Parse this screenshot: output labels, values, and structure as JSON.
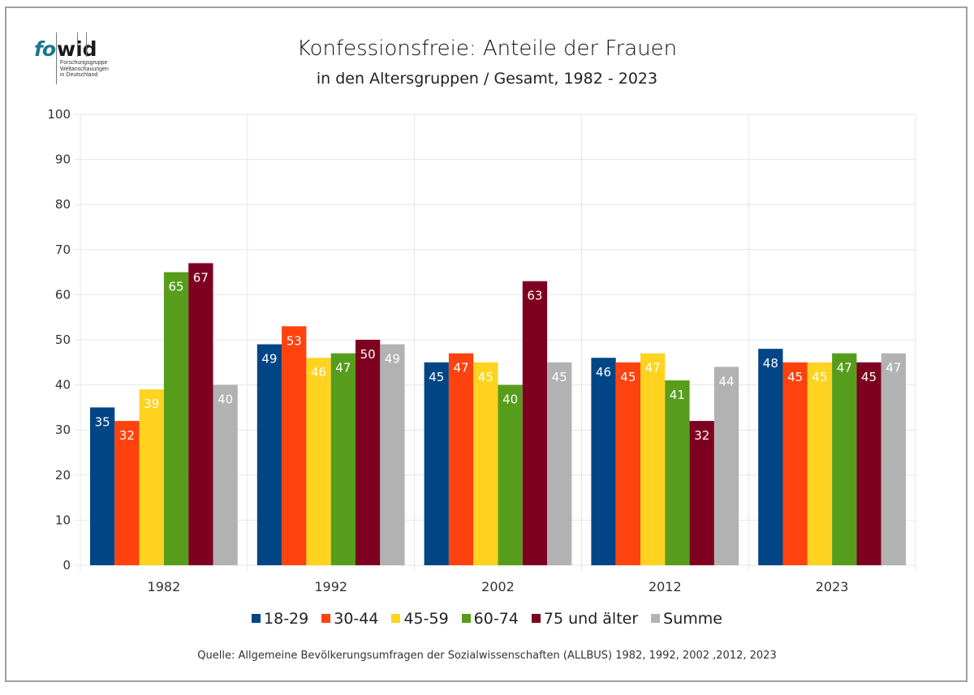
{
  "logo": {
    "part1": "fo",
    "part2": "wid",
    "lines": [
      "Forschungsgruppe",
      "Weltanschauungen",
      "in Deutschland"
    ]
  },
  "chart_data": {
    "type": "bar",
    "title": "Konfessionsfreie: Anteile der Frauen",
    "subtitle": "in den Altersgruppen / Gesamt, 1982 - 2023",
    "xlabel": "",
    "ylabel": "",
    "ylim": [
      0,
      100
    ],
    "yticks": [
      0,
      10,
      20,
      30,
      40,
      50,
      60,
      70,
      80,
      90,
      100
    ],
    "grid": true,
    "legend_position": "bottom",
    "categories": [
      "1982",
      "1992",
      "2002",
      "2012",
      "2023"
    ],
    "series": [
      {
        "name": "18-29",
        "color": "#004586",
        "values": [
          35,
          49,
          45,
          46,
          48
        ]
      },
      {
        "name": "30-44",
        "color": "#ff420e",
        "values": [
          32,
          53,
          47,
          45,
          45
        ]
      },
      {
        "name": "45-59",
        "color": "#ffd320",
        "values": [
          39,
          46,
          45,
          47,
          45
        ]
      },
      {
        "name": "60-74",
        "color": "#579d1c",
        "values": [
          65,
          47,
          40,
          41,
          47
        ]
      },
      {
        "name": "75 und älter",
        "color": "#7e0021",
        "values": [
          67,
          50,
          63,
          32,
          45
        ]
      },
      {
        "name": "Summe",
        "color": "#b2b2b2",
        "values": [
          40,
          49,
          45,
          44,
          47
        ]
      }
    ],
    "source": "Quelle: Allgemeine Bevölkerungsumfragen der Sozialwissenschaften (ALLBUS) 1982, 1992, 2002 ,2012, 2023"
  }
}
